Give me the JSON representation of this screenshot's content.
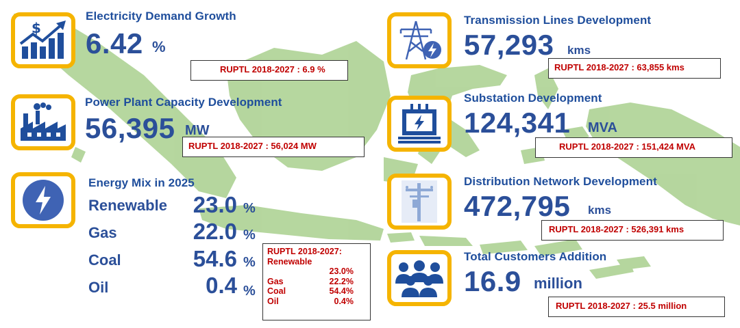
{
  "colors": {
    "accent": "#f5b400",
    "primary_text": "#2b4f99",
    "heading": "#1f4e9c",
    "ref_text": "#c00000",
    "map": "#a9d08e"
  },
  "electricity": {
    "icon": "growth-chart-dollar-icon",
    "title": "Electricity Demand Growth",
    "value": "6.42",
    "unit": "%",
    "ruptl": "RUPTL 2018-2027 : 6.9 %"
  },
  "power_plant": {
    "icon": "factory-icon",
    "title": "Power Plant Capacity Development",
    "value": "56,395",
    "unit": "MW",
    "ruptl": "RUPTL 2018-2027 : 56,024 MW"
  },
  "energy_mix": {
    "icon": "lightning-bolt-icon",
    "title": "Energy Mix in 2025",
    "items": [
      {
        "label": "Renewable",
        "value": "23.0",
        "unit": "%"
      },
      {
        "label": "Gas",
        "value": "22.0",
        "unit": "%"
      },
      {
        "label": "Coal",
        "value": "54.6",
        "unit": "%"
      },
      {
        "label": "Oil",
        "value": "0.4",
        "unit": "%"
      }
    ],
    "ruptl": {
      "title": "RUPTL 2018-2027:",
      "rows": [
        {
          "label": "Renewable",
          "value": "23.0%"
        },
        {
          "label": "Gas",
          "value": "22.2%"
        },
        {
          "label": "Coal",
          "value": "54.4%"
        },
        {
          "label": "Oil",
          "value": "0.4%"
        }
      ]
    }
  },
  "transmission": {
    "icon": "transmission-tower-icon",
    "title": "Transmission Lines Development",
    "value": "57,293",
    "unit": "kms",
    "ruptl": "RUPTL 2018-2027 : 63,855 kms"
  },
  "substation": {
    "icon": "substation-icon",
    "title": "Substation Development",
    "value": "124,341",
    "unit": "MVA",
    "ruptl": "RUPTL 2018-2027 : 151,424 MVA"
  },
  "distribution": {
    "icon": "utility-pole-icon",
    "title": "Distribution Network Development",
    "value": "472,795",
    "unit": "kms",
    "ruptl": "RUPTL 2018-2027 : 526,391 kms"
  },
  "customers": {
    "icon": "people-group-icon",
    "title": "Total Customers Addition",
    "value": "16.9",
    "unit": "million",
    "ruptl": "RUPTL 2018-2027 : 25.5 million"
  }
}
